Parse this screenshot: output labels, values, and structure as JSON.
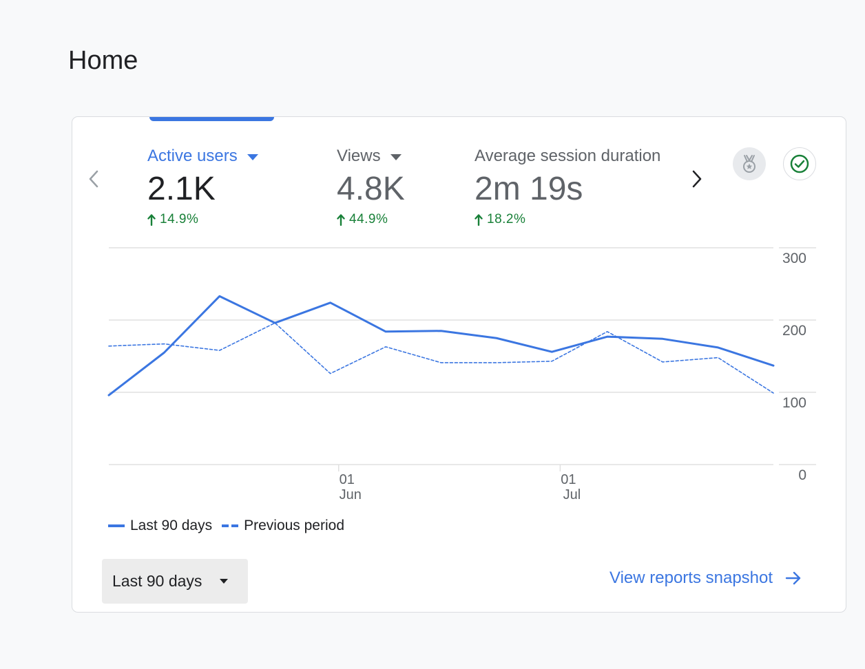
{
  "page": {
    "title": "Home"
  },
  "metrics": [
    {
      "label": "Active users",
      "value": "2.1K",
      "change": "14.9%",
      "active": true
    },
    {
      "label": "Views",
      "value": "4.8K",
      "change": "44.9%",
      "active": false
    },
    {
      "label": "Average session duration",
      "value": "2m 19s",
      "change": "18.2%",
      "active": false
    }
  ],
  "icons": {
    "prev": "chevron-left-icon",
    "next": "chevron-right-icon",
    "badge": "medal-icon",
    "check": "check-circle-icon",
    "trend": "arrow-up-icon",
    "link": "arrow-right-icon"
  },
  "colors": {
    "accent": "#3b76e1",
    "positive": "#188038",
    "grid": "#e0e0e0"
  },
  "legend": {
    "current": "Last 90 days",
    "previous": "Previous period"
  },
  "footer": {
    "date_range": "Last 90 days",
    "snapshot_link": "View reports snapshot"
  },
  "chart_data": {
    "type": "line",
    "x": [
      "",
      "",
      "",
      "",
      "",
      "",
      "",
      "",
      "",
      "",
      "",
      "",
      ""
    ],
    "x_tick_labels": [
      {
        "index": 4.15,
        "day": "01",
        "month": "Jun"
      },
      {
        "index": 8.15,
        "day": "01",
        "month": "Jul"
      }
    ],
    "series": [
      {
        "name": "Last 90 days",
        "style": "solid",
        "values": [
          96,
          155,
          233,
          196,
          224,
          184,
          185,
          175,
          156,
          177,
          174,
          162,
          137
        ]
      },
      {
        "name": "Previous period",
        "style": "dashed",
        "values": [
          164,
          167,
          158,
          196,
          126,
          163,
          141,
          141,
          143,
          184,
          142,
          148,
          99
        ]
      }
    ],
    "yticks": [
      0,
      100,
      200,
      300
    ],
    "ylim": [
      0,
      300
    ],
    "y_axis_position": "right",
    "grid": true,
    "legend_position": "bottom-left"
  }
}
